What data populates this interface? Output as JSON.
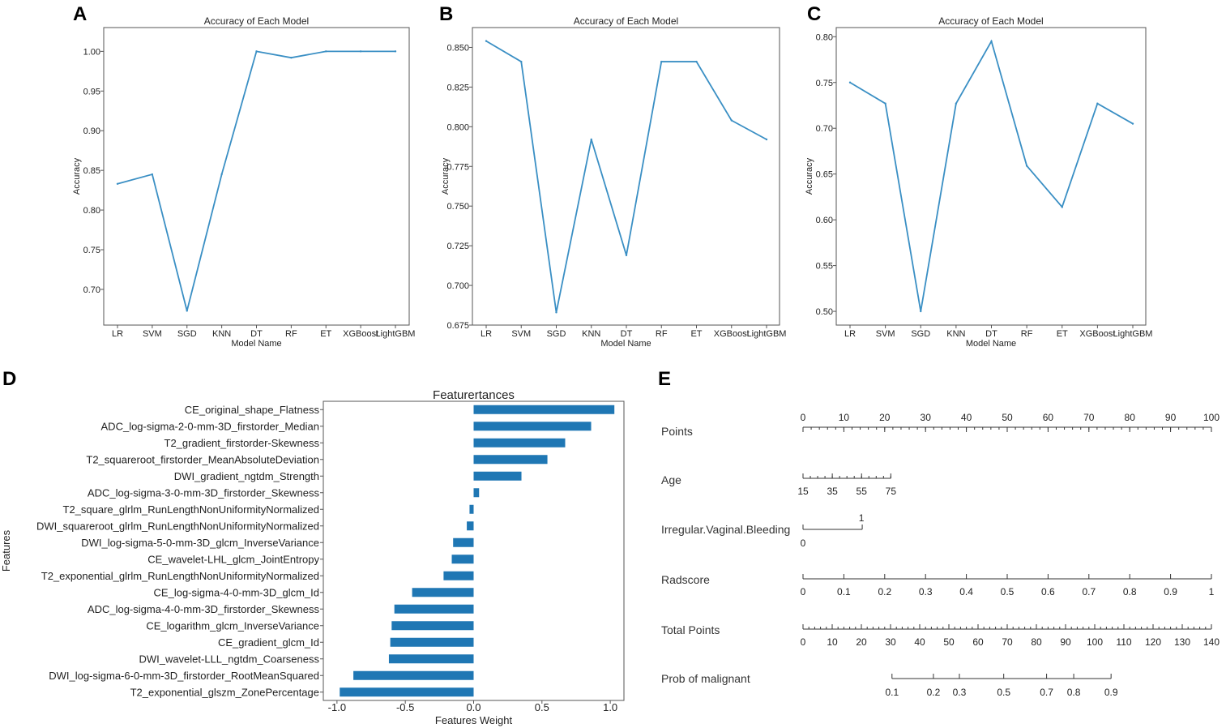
{
  "panel_letters": [
    "A",
    "B",
    "C",
    "D",
    "E"
  ],
  "chart_data": [
    {
      "panel": "A",
      "type": "line",
      "title": "Accuracy of Each Model",
      "xlabel": "Model Name",
      "ylabel": "Accuracy",
      "categories": [
        "LR",
        "SVM",
        "SGD",
        "KNN",
        "DT",
        "RF",
        "ET",
        "XGBoost",
        "LightGBM"
      ],
      "values": [
        0.833,
        0.845,
        0.673,
        0.845,
        1.0,
        0.992,
        1.0,
        1.0,
        1.0
      ],
      "ylim": [
        0.655,
        1.03
      ],
      "yticks": [
        0.7,
        0.75,
        0.8,
        0.85,
        0.9,
        0.95,
        1.0
      ],
      "ytick_labels": [
        "0.70",
        "0.75",
        "0.80",
        "0.85",
        "0.90",
        "0.95",
        "1.00"
      ],
      "color": "#3a8fc4"
    },
    {
      "panel": "B",
      "type": "line",
      "title": "Accuracy of Each Model",
      "xlabel": "Model Name",
      "ylabel": "Accuracy",
      "categories": [
        "LR",
        "SVM",
        "SGD",
        "KNN",
        "DT",
        "RF",
        "ET",
        "XGBoost",
        "LightGBM"
      ],
      "values": [
        0.854,
        0.841,
        0.683,
        0.792,
        0.719,
        0.841,
        0.841,
        0.804,
        0.792
      ],
      "ylim": [
        0.675,
        0.8625
      ],
      "yticks": [
        0.675,
        0.7,
        0.725,
        0.75,
        0.775,
        0.8,
        0.825,
        0.85
      ],
      "ytick_labels": [
        "0.675",
        "0.700",
        "0.725",
        "0.750",
        "0.775",
        "0.800",
        "0.825",
        "0.850"
      ],
      "color": "#3a8fc4"
    },
    {
      "panel": "C",
      "type": "line",
      "title": "Accuracy of Each Model",
      "xlabel": "Model Name",
      "ylabel": "Accuracy",
      "categories": [
        "LR",
        "SVM",
        "SGD",
        "KNN",
        "DT",
        "RF",
        "ET",
        "XGBoost",
        "LightGBM"
      ],
      "values": [
        0.75,
        0.727,
        0.5,
        0.727,
        0.795,
        0.659,
        0.614,
        0.727,
        0.705
      ],
      "ylim": [
        0.485,
        0.81
      ],
      "yticks": [
        0.5,
        0.55,
        0.6,
        0.65,
        0.7,
        0.75,
        0.8
      ],
      "ytick_labels": [
        "0.50",
        "0.55",
        "0.60",
        "0.65",
        "0.70",
        "0.75",
        "0.80"
      ],
      "color": "#3a8fc4"
    },
    {
      "panel": "D",
      "type": "bar",
      "orientation": "horizontal",
      "title": "Featurertances",
      "xlabel": "Features Weight",
      "ylabel": "Features",
      "xlim": [
        -1.1,
        1.1
      ],
      "xticks": [
        -1.0,
        -0.5,
        0.0,
        0.5,
        1.0
      ],
      "xtick_labels": [
        "-1.0",
        "-0.5",
        "0.0",
        "0.5",
        "1.0"
      ],
      "color": "#1f77b4",
      "categories": [
        "CE_original_shape_Flatness",
        "ADC_log-sigma-2-0-mm-3D_firstorder_Median",
        "T2_gradient_firstorder-Skewness",
        "T2_squareroot_firstorder_MeanAbsoluteDeviation",
        "DWI_gradient_ngtdm_Strength",
        "ADC_log-sigma-3-0-mm-3D_firstorder_Skewness",
        "T2_square_glrlm_RunLengthNonUniformityNormalized",
        "DWI_squareroot_glrlm_RunLengthNonUniformityNormalized",
        "DWI_log-sigma-5-0-mm-3D_glcm_InverseVariance",
        "CE_wavelet-LHL_glcm_JointEntropy",
        "T2_exponential_glrlm_RunLengthNonUniformityNormalized",
        "CE_log-sigma-4-0-mm-3D_glcm_Id",
        "ADC_log-sigma-4-0-mm-3D_firstorder_Skewness",
        "CE_logarithm_glcm_InverseVariance",
        "CE_gradient_glcm_Id",
        "DWI_wavelet-LLL_ngtdm_Coarseness",
        "DWI_log-sigma-6-0-mm-3D_firstorder_RootMeanSquared",
        "T2_exponential_glszm_ZonePercentage"
      ],
      "values": [
        1.03,
        0.86,
        0.67,
        0.54,
        0.35,
        0.04,
        -0.03,
        -0.05,
        -0.15,
        -0.16,
        -0.22,
        -0.45,
        -0.58,
        -0.6,
        -0.61,
        -0.62,
        -0.88,
        -0.98
      ]
    },
    {
      "panel": "E",
      "type": "nomogram",
      "rows": [
        {
          "label": "Points",
          "range": [
            0,
            100
          ],
          "major_ticks": [
            0,
            10,
            20,
            30,
            40,
            50,
            60,
            70,
            80,
            90,
            100
          ],
          "tick_labels": [
            "0",
            "10",
            "20",
            "30",
            "40",
            "50",
            "60",
            "70",
            "80",
            "90",
            "100"
          ],
          "minor_step": 2,
          "labels_above": true
        },
        {
          "label": "Age",
          "range": [
            15,
            75
          ],
          "major_ticks": [
            15,
            35,
            55,
            75
          ],
          "tick_labels": [
            "15",
            "35",
            "55",
            "75"
          ],
          "minor_step": 5,
          "points_at_max": 21.5,
          "labels_above": false
        },
        {
          "label": "Irregular.Vaginal.Bleeding",
          "categories": [
            "0",
            "1"
          ],
          "points": [
            0,
            14.5
          ]
        },
        {
          "label": "Radscore",
          "range": [
            0,
            1
          ],
          "major_ticks": [
            0,
            0.1,
            0.2,
            0.3,
            0.4,
            0.5,
            0.6,
            0.7,
            0.8,
            0.9,
            1
          ],
          "tick_labels": [
            "0",
            "0.1",
            "0.2",
            "0.3",
            "0.4",
            "0.5",
            "0.6",
            "0.7",
            "0.8",
            "0.9",
            "1"
          ],
          "labels_above": false
        },
        {
          "label": "Total Points",
          "range": [
            0,
            140
          ],
          "major_ticks": [
            0,
            10,
            20,
            30,
            40,
            50,
            60,
            70,
            80,
            90,
            100,
            110,
            120,
            130,
            140
          ],
          "tick_labels": [
            "0",
            "10",
            "20",
            "30",
            "40",
            "50",
            "60",
            "70",
            "80",
            "90",
            "100",
            "110",
            "120",
            "130",
            "140"
          ],
          "minor_step": 2,
          "labels_above": false
        },
        {
          "label": "Prob of malignant",
          "probabilities": [
            0.1,
            0.2,
            0.3,
            0.5,
            0.7,
            0.8,
            0.9
          ],
          "tick_labels": [
            "0.1",
            "0.2",
            "0.3",
            "0.5",
            "0.7",
            "0.8",
            "0.9"
          ],
          "total_points_at": [
            30.5,
            44.7,
            53.6,
            68.8,
            83.5,
            92.8,
            105.6
          ]
        }
      ]
    }
  ]
}
